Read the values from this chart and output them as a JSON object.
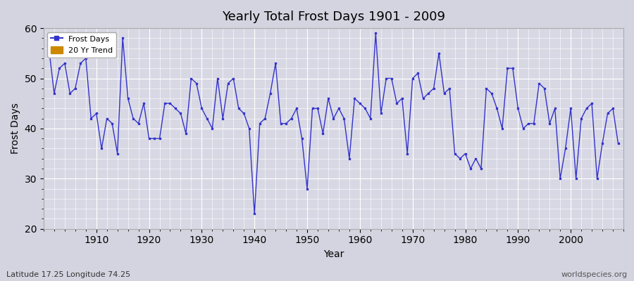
{
  "title": "Yearly Total Frost Days 1901 - 2009",
  "xlabel": "Year",
  "ylabel": "Frost Days",
  "subtitle": "Latitude 17.25 Longitude 74.25",
  "watermark": "worldspecies.org",
  "ylim": [
    20,
    60
  ],
  "xlim": [
    1900,
    2010
  ],
  "yticks": [
    20,
    30,
    40,
    50,
    60
  ],
  "xticks": [
    1910,
    1920,
    1930,
    1940,
    1950,
    1960,
    1970,
    1980,
    1990,
    2000
  ],
  "line_color": "#3333cc",
  "legend_entries": [
    "Frost Days",
    "20 Yr Trend"
  ],
  "legend_colors": [
    "#3333cc",
    "#cc8800"
  ],
  "years": [
    1901,
    1902,
    1903,
    1904,
    1905,
    1906,
    1907,
    1908,
    1909,
    1910,
    1911,
    1912,
    1913,
    1914,
    1915,
    1916,
    1917,
    1918,
    1919,
    1920,
    1921,
    1922,
    1923,
    1924,
    1925,
    1926,
    1927,
    1928,
    1929,
    1930,
    1931,
    1932,
    1933,
    1934,
    1935,
    1936,
    1937,
    1938,
    1939,
    1940,
    1941,
    1942,
    1943,
    1944,
    1945,
    1946,
    1947,
    1948,
    1949,
    1950,
    1951,
    1952,
    1953,
    1954,
    1955,
    1956,
    1957,
    1958,
    1959,
    1960,
    1961,
    1962,
    1963,
    1964,
    1965,
    1966,
    1967,
    1968,
    1969,
    1970,
    1971,
    1972,
    1973,
    1974,
    1975,
    1976,
    1977,
    1978,
    1979,
    1980,
    1981,
    1982,
    1983,
    1984,
    1985,
    1986,
    1987,
    1988,
    1989,
    1990,
    1991,
    1992,
    1993,
    1994,
    1995,
    1996,
    1997,
    1998,
    1999,
    2000,
    2001,
    2002,
    2003,
    2004,
    2005,
    2006,
    2007,
    2008,
    2009
  ],
  "values": [
    56,
    47,
    52,
    53,
    47,
    48,
    53,
    54,
    42,
    43,
    36,
    42,
    41,
    35,
    58,
    46,
    42,
    41,
    45,
    38,
    38,
    38,
    45,
    45,
    44,
    43,
    39,
    50,
    49,
    44,
    42,
    40,
    50,
    42,
    49,
    50,
    44,
    43,
    40,
    23,
    41,
    42,
    47,
    53,
    41,
    41,
    42,
    44,
    38,
    28,
    44,
    44,
    39,
    46,
    42,
    44,
    42,
    34,
    46,
    45,
    44,
    42,
    59,
    43,
    50,
    50,
    45,
    46,
    35,
    50,
    51,
    46,
    47,
    48,
    55,
    47,
    48,
    35,
    34,
    35,
    32,
    34,
    32,
    48,
    47,
    44,
    40,
    52,
    52,
    44,
    40,
    41,
    41,
    49,
    48,
    41,
    44,
    30,
    36,
    44,
    30,
    42,
    44,
    45,
    30,
    37,
    43,
    44,
    37
  ]
}
